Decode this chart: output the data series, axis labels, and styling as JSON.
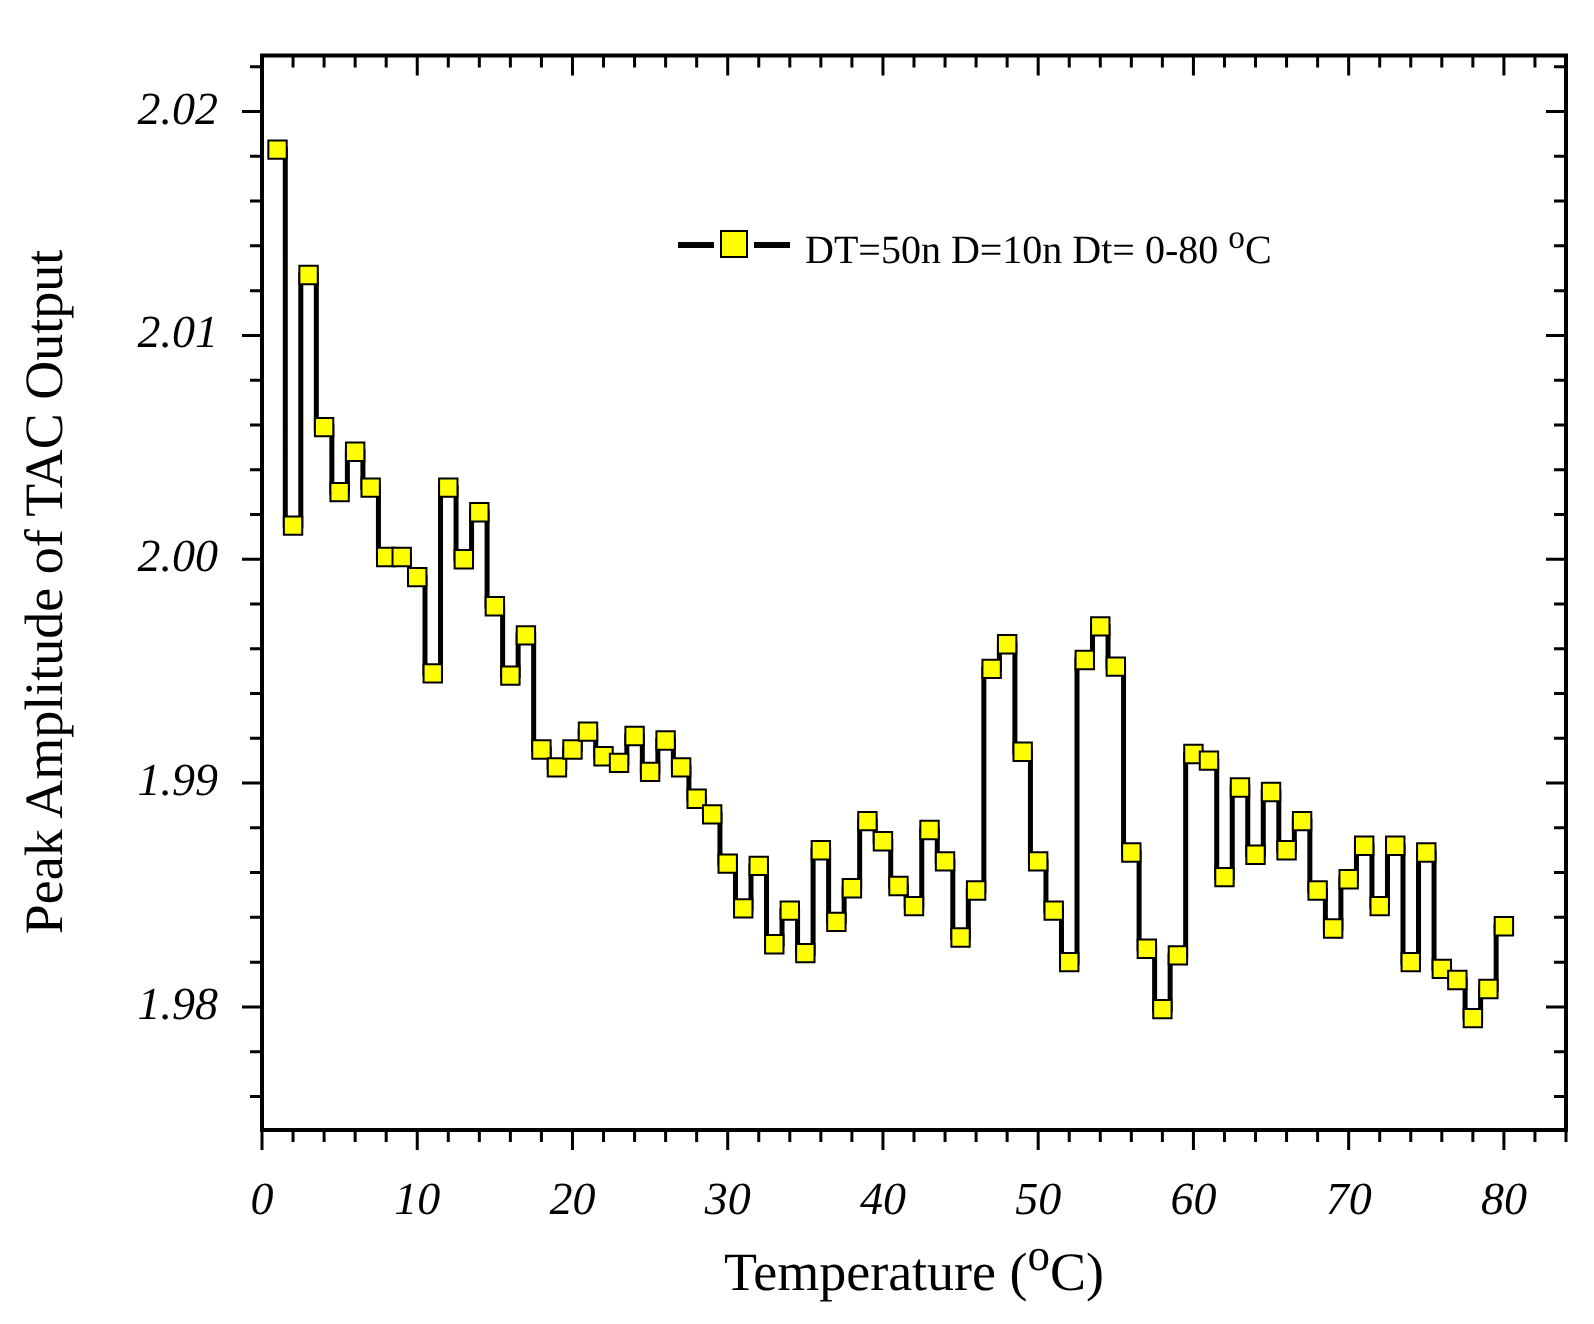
{
  "chart_data": {
    "type": "step",
    "xlabel": "Temperature ($^{o}$C)",
    "ylabel": "Peak Amplitude of TAC Output",
    "x": [
      1,
      2,
      3,
      4,
      5,
      6,
      7,
      8,
      9,
      10,
      11,
      12,
      13,
      14,
      15,
      16,
      17,
      18,
      19,
      20,
      21,
      22,
      23,
      24,
      25,
      26,
      27,
      28,
      29,
      30,
      31,
      32,
      33,
      34,
      35,
      36,
      37,
      38,
      39,
      40,
      41,
      42,
      43,
      44,
      45,
      46,
      47,
      48,
      49,
      50,
      51,
      52,
      53,
      54,
      55,
      56,
      57,
      58,
      59,
      60,
      61,
      62,
      63,
      64,
      65,
      66,
      67,
      68,
      69,
      70,
      71,
      72,
      73,
      74,
      75,
      76,
      77,
      78,
      79,
      80
    ],
    "series": [
      {
        "name": "DT=50n D=10n  Dt= 0-80 $^{o}$C",
        "color": "#ffff00",
        "values": [
          2.0183,
          2.0015,
          2.0127,
          2.0059,
          2.003,
          2.0048,
          2.0032,
          2.0001,
          2.0001,
          1.9992,
          1.9949,
          2.0032,
          2.0,
          2.0021,
          1.9979,
          1.9948,
          1.9966,
          1.9915,
          1.9907,
          1.9915,
          1.9923,
          1.9912,
          1.9909,
          1.9921,
          1.9905,
          1.9919,
          1.9907,
          1.9893,
          1.9886,
          1.9864,
          1.9844,
          1.9863,
          1.9828,
          1.9843,
          1.9824,
          1.987,
          1.9838,
          1.9853,
          1.9883,
          1.9874,
          1.9854,
          1.9845,
          1.9879,
          1.9865,
          1.9831,
          1.9852,
          1.9951,
          1.9962,
          1.9914,
          1.9865,
          1.9843,
          1.982,
          1.9955,
          1.997,
          1.9952,
          1.9869,
          1.9826,
          1.9799,
          1.9823,
          1.9913,
          1.991,
          1.9858,
          1.9898,
          1.9868,
          1.9896,
          1.987,
          1.9883,
          1.9852,
          1.9835,
          1.9857,
          1.9872,
          1.9845,
          1.9872,
          1.982,
          1.9869,
          1.9817,
          1.9812,
          1.9795,
          1.9808,
          1.9836
        ]
      }
    ],
    "xlim": [
      0,
      84
    ],
    "xticks": [
      0,
      {
        "value": 2,
        "label": null
      },
      {
        "value": 4,
        "label": null
      },
      {
        "value": 6,
        "label": null
      },
      {
        "value": 8,
        "label": null
      },
      10,
      {
        "value": 12,
        "label": null
      },
      {
        "value": 14,
        "label": null
      },
      {
        "value": 16,
        "label": null
      },
      {
        "value": 18,
        "label": null
      },
      20,
      {
        "value": 22,
        "label": null
      },
      {
        "value": 24,
        "label": null
      },
      {
        "value": 26,
        "label": null
      },
      {
        "value": 28,
        "label": null
      },
      30,
      {
        "value": 32,
        "label": null
      },
      {
        "value": 34,
        "label": null
      },
      {
        "value": 36,
        "label": null
      },
      {
        "value": 38,
        "label": null
      },
      40,
      {
        "value": 42,
        "label": null
      },
      {
        "value": 44,
        "label": null
      },
      {
        "value": 46,
        "label": null
      },
      {
        "value": 48,
        "label": null
      },
      50,
      {
        "value": 52,
        "label": null
      },
      {
        "value": 54,
        "label": null
      },
      {
        "value": 56,
        "label": null
      },
      {
        "value": 58,
        "label": null
      },
      60,
      {
        "value": 62,
        "label": null
      },
      {
        "value": 64,
        "label": null
      },
      {
        "value": 66,
        "label": null
      },
      {
        "value": 68,
        "label": null
      },
      70,
      {
        "value": 72,
        "label": null
      },
      {
        "value": 74,
        "label": null
      },
      {
        "value": 76,
        "label": null
      },
      {
        "value": 78,
        "label": null
      },
      80,
      {
        "value": 82,
        "label": null
      },
      {
        "value": 84,
        "label": null
      }
    ],
    "ylim": [
      1.9745,
      2.0225
    ],
    "yticks": [
      {
        "value": 1.976,
        "label": null
      },
      {
        "value": 1.978,
        "label": null
      },
      1.98,
      {
        "value": 1.982,
        "label": null
      },
      {
        "value": 1.984,
        "label": null
      },
      {
        "value": 1.986,
        "label": null
      },
      {
        "value": 1.988,
        "label": null
      },
      1.99,
      {
        "value": 1.992,
        "label": null
      },
      {
        "value": 1.994,
        "label": null
      },
      {
        "value": 1.996,
        "label": null
      },
      {
        "value": 1.998,
        "label": null
      },
      {
        "value": 2.0,
        "label": "2.00"
      },
      {
        "value": 2.002,
        "label": null
      },
      {
        "value": 2.004,
        "label": null
      },
      {
        "value": 2.006,
        "label": null
      },
      {
        "value": 2.008,
        "label": null
      },
      2.01,
      {
        "value": 2.012,
        "label": null
      },
      {
        "value": 2.014,
        "label": null
      },
      {
        "value": 2.016,
        "label": null
      },
      {
        "value": 2.018,
        "label": null
      },
      2.02,
      {
        "value": 2.022,
        "label": null
      }
    ],
    "grid": false,
    "legend": "top",
    "marker": "square"
  }
}
